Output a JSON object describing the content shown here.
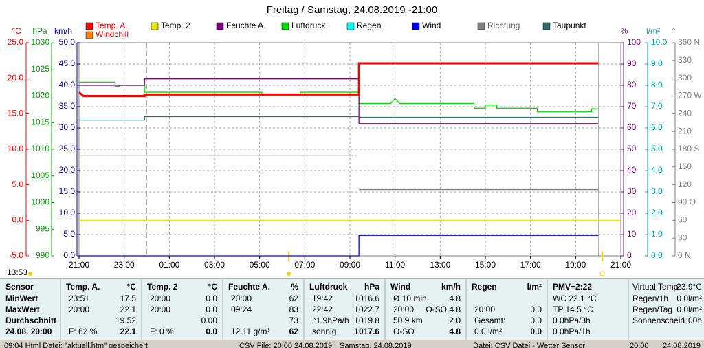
{
  "chart_data": {
    "type": "line",
    "title": "Freitag / Samstag, 24.08.2019  -21:00",
    "time_label": "13:53",
    "grid": true,
    "xlim": [
      0,
      24
    ],
    "xticks": [
      {
        "value": 0,
        "label": "21:00"
      },
      {
        "value": 2,
        "label": "23:00"
      },
      {
        "value": 4,
        "label": "01:00"
      },
      {
        "value": 6,
        "label": "03:00"
      },
      {
        "value": 8,
        "label": "05:00"
      },
      {
        "value": 10,
        "label": "07:00"
      },
      {
        "value": 12,
        "label": "09:00"
      },
      {
        "value": 14,
        "label": "11:00"
      },
      {
        "value": 16,
        "label": "13:00"
      },
      {
        "value": 18,
        "label": "15:00"
      },
      {
        "value": 20,
        "label": "17:00"
      },
      {
        "value": 22,
        "label": "19:00"
      },
      {
        "value": 24,
        "label": "21:00"
      }
    ],
    "axes": [
      {
        "label": "°C",
        "color": "#ff0000",
        "ylim": [
          -5,
          25
        ],
        "yticks": [
          {
            "value": -5,
            "label": "-5.0"
          },
          {
            "value": 0,
            "label": "0.0"
          },
          {
            "value": 5,
            "label": "5.0"
          },
          {
            "value": 10,
            "label": "10.0"
          },
          {
            "value": 15,
            "label": "15.0"
          },
          {
            "value": 20,
            "label": "20.0"
          },
          {
            "value": 25,
            "label": "25.0"
          }
        ]
      },
      {
        "label": "hPa",
        "color": "#00a000",
        "ylim": [
          990,
          1030
        ],
        "yticks": [
          990,
          995,
          1000,
          1005,
          1010,
          1015,
          1020,
          1025,
          1030
        ]
      },
      {
        "label": "km/h",
        "color": "#0000c0",
        "ylim": [
          0,
          50
        ],
        "yticks": [
          {
            "value": 0,
            "label": "0.0"
          },
          {
            "value": 5,
            "label": "5.0"
          },
          {
            "value": 10,
            "label": "10.0"
          },
          {
            "value": 15,
            "label": "15.0"
          },
          {
            "value": 20,
            "label": "20.0"
          },
          {
            "value": 25,
            "label": "25.0"
          },
          {
            "value": 30,
            "label": "30.0"
          },
          {
            "value": 35,
            "label": "35.0"
          },
          {
            "value": 40,
            "label": "40.0"
          },
          {
            "value": 45,
            "label": "45.0"
          },
          {
            "value": 50,
            "label": "50.0"
          }
        ]
      },
      {
        "label": "%",
        "color": "#800080",
        "ylim": [
          0,
          100
        ],
        "yticks": [
          0,
          10,
          20,
          30,
          40,
          50,
          60,
          70,
          80,
          90,
          100
        ]
      },
      {
        "label": "l/m²",
        "color": "#00a8a8",
        "ylim": [
          0,
          10
        ],
        "yticks": [
          {
            "value": 0,
            "label": "0.0"
          },
          {
            "value": 1,
            "label": "1.0"
          },
          {
            "value": 2,
            "label": "2.0"
          },
          {
            "value": 3,
            "label": "3.0"
          },
          {
            "value": 4,
            "label": "4.0"
          },
          {
            "value": 5,
            "label": "5.0"
          },
          {
            "value": 6,
            "label": "6.0"
          },
          {
            "value": 7,
            "label": "7.0"
          },
          {
            "value": 8,
            "label": "8.0"
          },
          {
            "value": 9,
            "label": "9.0"
          },
          {
            "value": 10,
            "label": "10.0"
          }
        ]
      },
      {
        "label": "°",
        "color": "#808080",
        "ylim": [
          0,
          360
        ],
        "yticks": [
          {
            "value": 0,
            "label": "0 N"
          },
          30,
          60,
          {
            "value": 90,
            "label": "90 O"
          },
          120,
          150,
          {
            "value": 180,
            "label": "180 S"
          },
          210,
          240,
          {
            "value": 270,
            "label": "270 W"
          },
          300,
          330,
          {
            "value": 360,
            "label": "360 N"
          }
        ]
      }
    ],
    "series": [
      {
        "name": "Temp. A.",
        "color": "#ff0000",
        "axis": "°C",
        "x": [
          0,
          0.2,
          2.9,
          2.9,
          12.4,
          12.4,
          23
        ],
        "values": [
          18.0,
          17.5,
          17.5,
          17.7,
          17.7,
          22.1,
          22.1
        ]
      },
      {
        "name": "Temp. 2",
        "color": "#e8e800",
        "axis": "°C",
        "x": [
          0,
          24
        ],
        "values": [
          0.0,
          0.0
        ]
      },
      {
        "name": "Feuchte A.",
        "color": "#800080",
        "axis": "%",
        "x": [
          0,
          2.9,
          2.9,
          12.4,
          12.4,
          23
        ],
        "values": [
          80,
          80,
          83,
          83,
          62,
          62
        ]
      },
      {
        "name": "Luftdruck",
        "color": "#00dd00",
        "axis": "hPa",
        "x": [
          0,
          1.6,
          1.6,
          1.8,
          1.8,
          2.9,
          2.9,
          8.1,
          8.1,
          9.8,
          9.8,
          12.4,
          12.4,
          13.8,
          14.0,
          14.2,
          17.5,
          17.5,
          18.0,
          18.0,
          18.5,
          18.5,
          20.3,
          20.3,
          22.7,
          22.7,
          23
        ],
        "values": [
          1022.6,
          1022.6,
          1021.8,
          1021.8,
          1022.0,
          1022.0,
          1020.7,
          1020.7,
          1020.3,
          1020.3,
          1020.7,
          1020.7,
          1018.6,
          1018.6,
          1019.5,
          1018.6,
          1018.6,
          1017.7,
          1017.7,
          1018.3,
          1018.3,
          1017.7,
          1017.7,
          1017.0,
          1017.0,
          1017.6,
          1017.6
        ]
      },
      {
        "name": "Regen",
        "color": "#00ffff",
        "axis": "l/m²",
        "x": [],
        "values": []
      },
      {
        "name": "Wind",
        "color": "#0000ff",
        "axis": "km/h",
        "x": [
          0,
          12.4,
          12.4,
          23
        ],
        "values": [
          0.0,
          0.0,
          4.8,
          4.8
        ]
      },
      {
        "name": "Richtung",
        "color": "#808080",
        "axis": "°",
        "x": [
          0,
          12.3,
          12.35,
          12.4,
          23
        ],
        "values": [
          170,
          170,
          null,
          112,
          112
        ]
      },
      {
        "name": "Taupunkt",
        "color": "#2f6f6f",
        "axis": "°C",
        "x": [
          0,
          2.9,
          2.9,
          12.4,
          12.4,
          23
        ],
        "values": [
          14.1,
          14.1,
          14.6,
          14.6,
          14.5,
          14.5
        ]
      },
      {
        "name": "Windchill",
        "color": "#ff8000",
        "axis": "°C",
        "x": [],
        "values": []
      }
    ]
  },
  "table": {
    "label_column": [
      "Sensor",
      "MinWert",
      "MaxWert",
      "Durchschnitt",
      "24.08. 20:00"
    ],
    "columns": [
      {
        "header": [
          "Temp. A.",
          "°C"
        ],
        "rows": [
          [
            "23:51",
            "17.5"
          ],
          [
            "20:00",
            "22.1"
          ],
          [
            null,
            "19.52"
          ],
          [
            "F: 62 %",
            "22.1"
          ]
        ]
      },
      {
        "header": [
          "Temp. 2",
          "°C"
        ],
        "rows": [
          [
            "20:00",
            "0.0"
          ],
          [
            "20:00",
            "0.0"
          ],
          [
            null,
            "0.00"
          ],
          [
            "F: 0 %",
            "0.0"
          ]
        ]
      },
      {
        "header": [
          "Feuchte A.",
          "%"
        ],
        "rows": [
          [
            "20:00",
            "62"
          ],
          [
            "09:24",
            "83"
          ],
          [
            null,
            "73"
          ],
          [
            "12.11 g/m³",
            "62"
          ]
        ]
      },
      {
        "header": [
          "Luftdruck",
          "hPa"
        ],
        "rows": [
          [
            "19:42",
            "1016.6"
          ],
          [
            "22:42",
            "1022.7"
          ],
          [
            "^1.9hPa/h",
            "1019.8"
          ],
          [
            "sonnig",
            "1017.6"
          ]
        ]
      },
      {
        "header": [
          "Wind",
          "km/h"
        ],
        "rows": [
          [
            "Ø 10 min.",
            "4.8"
          ],
          [
            "20:00",
            "O-SO 4.8"
          ],
          [
            "50.9 km",
            "2.0"
          ],
          [
            "O-SO",
            "4.8"
          ]
        ]
      },
      {
        "header": [
          "Regen",
          "l/m²"
        ],
        "rows": [
          [
            null,
            null
          ],
          [
            "20:00",
            "0.0"
          ],
          [
            "Gesamt:",
            "0.0"
          ],
          [
            "0.0 l/m²",
            "0.0"
          ]
        ]
      }
    ],
    "pmv": {
      "header": "PMV+2:22",
      "rows": [
        "WC 22.1 °C",
        "TP 14.5 °C",
        "0.0hPa/3h",
        "0.0hPa/1h"
      ]
    },
    "extra": [
      [
        "Virtual Temp",
        "23.9°C"
      ],
      [
        "Regen/1h",
        "0.0l/m²"
      ],
      [
        "Regen/Tag",
        "0.0l/m²"
      ],
      [
        "Sonnenschein",
        "1:00h"
      ]
    ]
  },
  "status_bar": [
    "09:04  Html Datei: \"aktuell.htm\" gespeichert",
    "CSV File: 20:00  24.08.2019",
    "Samstag, 24.08.2019",
    "Datei: CSV Datei - Wetter Sensor",
    "20:00",
    "24.08.2019"
  ]
}
